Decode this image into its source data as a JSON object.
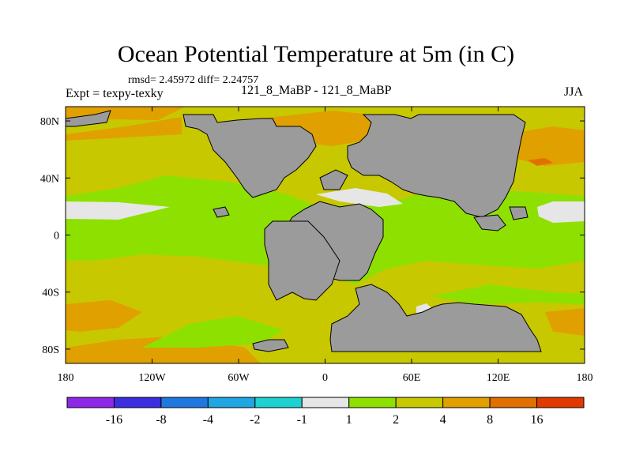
{
  "chart_data": {
    "type": "heatmap",
    "title": "Ocean Potential Temperature at 5m (in C)",
    "stats_text": "rmsd= 2.45972 diff= 2.24757",
    "left_label": "Expt = texpy-texky",
    "center_label": "121_8_MaBP - 121_8_MaBP",
    "right_label": "JJA",
    "x_ticks": [
      {
        "value": -180,
        "label": "180"
      },
      {
        "value": -120,
        "label": "120W"
      },
      {
        "value": -60,
        "label": "60W"
      },
      {
        "value": 0,
        "label": "0"
      },
      {
        "value": 60,
        "label": "60E"
      },
      {
        "value": 120,
        "label": "120E"
      },
      {
        "value": 180,
        "label": "180"
      }
    ],
    "y_ticks": [
      {
        "value": 80,
        "label": "80N"
      },
      {
        "value": 40,
        "label": "40N"
      },
      {
        "value": 0,
        "label": "0"
      },
      {
        "value": -40,
        "label": "40S"
      },
      {
        "value": -80,
        "label": "80S"
      }
    ],
    "xlim": [
      -180,
      180
    ],
    "ylim": [
      -90,
      90
    ],
    "colorbar": {
      "colors": [
        "#8d28e6",
        "#3a2ee0",
        "#1f78e0",
        "#1fa6e3",
        "#1fd1d1",
        "#e6e6e6",
        "#8ee000",
        "#c8c800",
        "#e0a000",
        "#e07000",
        "#e03a00"
      ],
      "labels": [
        "-16",
        "-8",
        "-4",
        "-2",
        "-1",
        "1",
        "2",
        "4",
        "8",
        "16"
      ]
    },
    "land_color": "#9b9b9b",
    "background_color": "#c8c800"
  }
}
